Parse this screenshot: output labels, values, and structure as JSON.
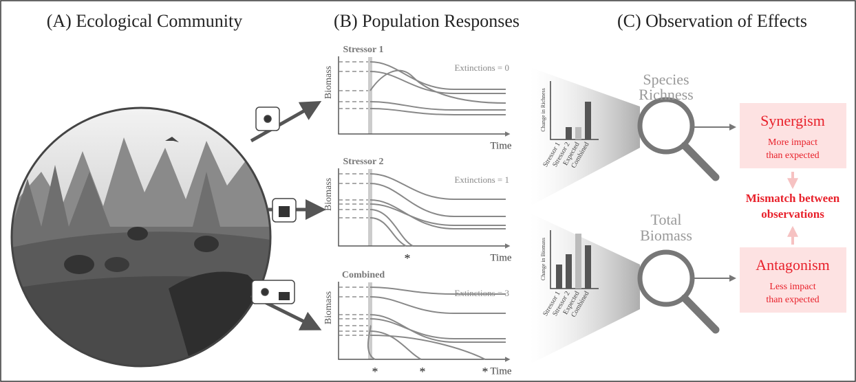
{
  "panels": [
    {
      "title": "(A) Ecological Community"
    },
    {
      "title": "(B) Population Responses",
      "plots": [
        {
          "title": "Stressor 1",
          "y_label": "Biomass",
          "x_label": "Time",
          "annotation": "Extinctions = 0"
        },
        {
          "title": "Stressor 2",
          "y_label": "Biomass",
          "x_label": "Time",
          "annotation": "Extinctions = 1",
          "markers": [
            "*"
          ]
        },
        {
          "title": "Combined",
          "y_label": "Biomass",
          "x_label": "Time",
          "annotation": "Extinctions = 3",
          "markers": [
            "*",
            "*",
            "*"
          ]
        }
      ]
    },
    {
      "title": "(C) Observation of Effects",
      "metrics": [
        {
          "label_lines": [
            "Species",
            "Richness"
          ],
          "y_label": "Change in Richness",
          "categories": [
            "Stressor 1",
            "Stressor 2",
            "Expected",
            "Combined"
          ]
        },
        {
          "label_lines": [
            "Total",
            "Biomass"
          ],
          "y_label": "Change in Biomass",
          "categories": [
            "Stressor 1",
            "Stressor 2",
            "Expected",
            "Combined"
          ]
        }
      ],
      "outcomes": [
        {
          "title": "Synergism",
          "lines": [
            "More impact",
            "than expected"
          ]
        },
        {
          "title": "Antagonism",
          "lines": [
            "Less impact",
            "than expected"
          ]
        }
      ],
      "mismatch_lines": [
        "Mismatch between",
        "observations"
      ]
    }
  ]
}
